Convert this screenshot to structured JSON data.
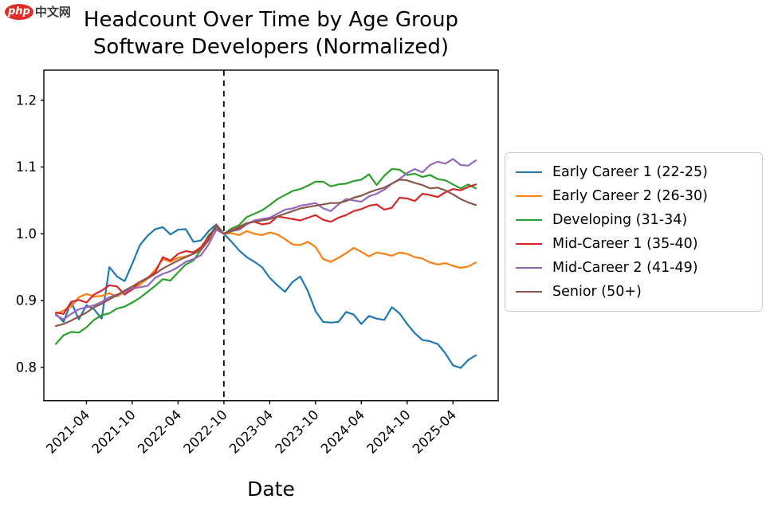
{
  "logo": {
    "badge_text": "php",
    "site_text": "中文网",
    "badge_color": "#e02d28",
    "text_color": "#3a3a3a"
  },
  "title": {
    "line1": "Headcount Over Time by Age Group",
    "line2": "Software Developers (Normalized)"
  },
  "chart_data": {
    "type": "line",
    "title": "Headcount Over Time by Age Group",
    "subtitle": "Software Developers (Normalized)",
    "xlabel": "Date",
    "ylabel": "",
    "grid": false,
    "legend_position": "right outside",
    "axis_color": "#000000",
    "legend_border_color": "#cccccc",
    "background_color": "#ffffff",
    "ylim": [
      0.75,
      1.245
    ],
    "xlim_index": [
      -1.58,
      57.92
    ],
    "y_ticks": [
      0.8,
      0.9,
      1.0,
      1.1,
      1.2
    ],
    "y_tick_labels": [
      "0.8",
      "0.9",
      "1.0",
      "1.1",
      "1.2"
    ],
    "x_tick_labels": [
      "2021-04",
      "2021-10",
      "2022-04",
      "2022-10",
      "2023-04",
      "2023-10",
      "2024-04",
      "2024-10",
      "2025-04"
    ],
    "x_tick_indices": [
      4,
      10,
      16,
      22,
      28,
      34,
      40,
      46,
      52
    ],
    "reference_line": {
      "x_index": 22,
      "date": "2022-10",
      "style": "dashed",
      "color": "#000000"
    },
    "x_dates": [
      "2020-12",
      "2021-01",
      "2021-02",
      "2021-03",
      "2021-04",
      "2021-05",
      "2021-06",
      "2021-07",
      "2021-08",
      "2021-09",
      "2021-10",
      "2021-11",
      "2021-12",
      "2022-01",
      "2022-02",
      "2022-03",
      "2022-04",
      "2022-05",
      "2022-06",
      "2022-07",
      "2022-08",
      "2022-09",
      "2022-10",
      "2022-11",
      "2022-12",
      "2023-01",
      "2023-02",
      "2023-03",
      "2023-04",
      "2023-05",
      "2023-06",
      "2023-07",
      "2023-08",
      "2023-09",
      "2023-10",
      "2023-11",
      "2023-12",
      "2024-01",
      "2024-02",
      "2024-03",
      "2024-04",
      "2024-05",
      "2024-06",
      "2024-07",
      "2024-08",
      "2024-09",
      "2024-10",
      "2024-11",
      "2024-12",
      "2025-01",
      "2025-02",
      "2025-03",
      "2025-04",
      "2025-05",
      "2025-06",
      "2025-07"
    ],
    "series": [
      {
        "name": "Early Career 1 (22-25)",
        "color": "#1f77b4",
        "values": [
          0.88,
          0.868,
          0.898,
          0.872,
          0.893,
          0.887,
          0.873,
          0.95,
          0.936,
          0.929,
          0.955,
          0.983,
          0.997,
          1.007,
          1.01,
          0.999,
          1.006,
          1.007,
          0.988,
          0.99,
          1.004,
          1.014,
          1.0,
          0.988,
          0.975,
          0.965,
          0.958,
          0.95,
          0.934,
          0.923,
          0.913,
          0.928,
          0.936,
          0.914,
          0.884,
          0.868,
          0.867,
          0.868,
          0.883,
          0.879,
          0.865,
          0.877,
          0.873,
          0.871,
          0.89,
          0.881,
          0.865,
          0.851,
          0.841,
          0.839,
          0.835,
          0.821,
          0.803,
          0.799,
          0.811,
          0.818
        ]
      },
      {
        "name": "Early Career 2 (26-30)",
        "color": "#ff7f0e",
        "values": [
          0.88,
          0.885,
          0.891,
          0.905,
          0.91,
          0.906,
          0.907,
          0.911,
          0.906,
          0.913,
          0.916,
          0.924,
          0.933,
          0.946,
          0.962,
          0.958,
          0.964,
          0.966,
          0.97,
          0.979,
          0.994,
          1.012,
          1.0,
          1.001,
          0.998,
          1.004,
          1.0,
          0.998,
          1.002,
          0.999,
          0.992,
          0.984,
          0.983,
          0.988,
          0.98,
          0.962,
          0.958,
          0.964,
          0.971,
          0.979,
          0.973,
          0.966,
          0.972,
          0.97,
          0.967,
          0.972,
          0.97,
          0.965,
          0.963,
          0.957,
          0.954,
          0.956,
          0.952,
          0.949,
          0.951,
          0.957
        ]
      },
      {
        "name": "Developing (31-34)",
        "color": "#2ca02c",
        "values": [
          0.835,
          0.848,
          0.853,
          0.852,
          0.86,
          0.871,
          0.878,
          0.881,
          0.888,
          0.891,
          0.897,
          0.904,
          0.913,
          0.922,
          0.932,
          0.93,
          0.942,
          0.954,
          0.96,
          0.976,
          0.998,
          1.008,
          1.0,
          1.008,
          1.013,
          1.025,
          1.03,
          1.035,
          1.043,
          1.052,
          1.058,
          1.064,
          1.067,
          1.072,
          1.078,
          1.078,
          1.071,
          1.074,
          1.075,
          1.079,
          1.081,
          1.089,
          1.073,
          1.087,
          1.097,
          1.096,
          1.088,
          1.09,
          1.085,
          1.088,
          1.082,
          1.08,
          1.074,
          1.068,
          1.074,
          1.068
        ]
      },
      {
        "name": "Mid-Career 1 (35-40)",
        "color": "#d62728",
        "values": [
          0.882,
          0.88,
          0.898,
          0.901,
          0.897,
          0.909,
          0.915,
          0.923,
          0.921,
          0.909,
          0.917,
          0.928,
          0.934,
          0.942,
          0.965,
          0.96,
          0.97,
          0.974,
          0.972,
          0.98,
          0.995,
          1.012,
          1.0,
          1.005,
          1.01,
          1.016,
          1.018,
          1.014,
          1.016,
          1.026,
          1.024,
          1.022,
          1.02,
          1.024,
          1.028,
          1.021,
          1.018,
          1.024,
          1.028,
          1.034,
          1.037,
          1.042,
          1.044,
          1.036,
          1.039,
          1.054,
          1.053,
          1.049,
          1.06,
          1.058,
          1.055,
          1.062,
          1.067,
          1.065,
          1.07,
          1.074
        ]
      },
      {
        "name": "Mid-Career 2 (41-49)",
        "color": "#9467bd",
        "values": [
          0.878,
          0.872,
          0.88,
          0.887,
          0.89,
          0.893,
          0.898,
          0.905,
          0.909,
          0.913,
          0.918,
          0.92,
          0.922,
          0.934,
          0.94,
          0.944,
          0.95,
          0.958,
          0.962,
          0.968,
          0.984,
          1.006,
          1.0,
          1.004,
          1.006,
          1.014,
          1.02,
          1.022,
          1.024,
          1.03,
          1.036,
          1.038,
          1.042,
          1.044,
          1.046,
          1.038,
          1.034,
          1.044,
          1.052,
          1.05,
          1.048,
          1.056,
          1.06,
          1.066,
          1.075,
          1.082,
          1.091,
          1.097,
          1.092,
          1.103,
          1.108,
          1.105,
          1.112,
          1.103,
          1.102,
          1.11
        ]
      },
      {
        "name": "Senior (50+)",
        "color": "#8c564b",
        "values": [
          0.862,
          0.865,
          0.87,
          0.876,
          0.882,
          0.89,
          0.895,
          0.902,
          0.908,
          0.915,
          0.921,
          0.928,
          0.933,
          0.94,
          0.948,
          0.954,
          0.96,
          0.965,
          0.97,
          0.976,
          0.99,
          1.013,
          1.0,
          1.004,
          1.008,
          1.016,
          1.018,
          1.02,
          1.022,
          1.026,
          1.03,
          1.034,
          1.038,
          1.04,
          1.042,
          1.044,
          1.046,
          1.046,
          1.049,
          1.054,
          1.057,
          1.062,
          1.066,
          1.069,
          1.075,
          1.081,
          1.08,
          1.076,
          1.073,
          1.068,
          1.069,
          1.065,
          1.059,
          1.052,
          1.047,
          1.043
        ]
      }
    ]
  }
}
